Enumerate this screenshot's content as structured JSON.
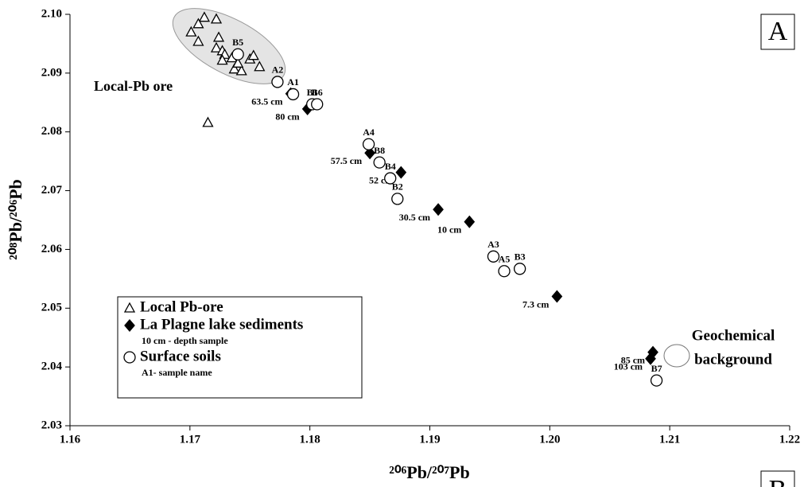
{
  "chart_data": {
    "type": "scatter",
    "xlabel": "²⁰⁶Pb/²⁰⁷Pb",
    "ylabel": "²⁰⁸Pb/²⁰⁶Pb",
    "xlim": [
      1.16,
      1.22
    ],
    "ylim": [
      2.03,
      2.1
    ],
    "xticks": [
      1.16,
      1.17,
      1.18,
      1.19,
      {
        "value": 1.2,
        "label": "1.20"
      },
      1.21,
      1.22
    ],
    "yticks": [
      2.03,
      2.04,
      2.05,
      2.06,
      2.07,
      2.08,
      2.09,
      {
        "value": 2.1,
        "label": "2.10"
      }
    ],
    "annotations": [
      "Local-Pb ore",
      "Geochemical",
      "background"
    ],
    "panel_labels": [
      "A",
      "B"
    ],
    "series": [
      {
        "name": "Local Pb-ore",
        "marker": "triangle",
        "color": "#ffffff",
        "x": [
          1.1712,
          1.1722,
          1.1707,
          1.1701,
          1.1707,
          1.1724,
          1.1722,
          1.1727,
          1.1729,
          1.1735,
          1.1737,
          1.1743,
          1.174,
          1.175,
          1.1753,
          1.1758,
          1.1727,
          1.1715
        ],
        "values": [
          2.0995,
          2.0992,
          2.0984,
          2.097,
          2.0954,
          2.0961,
          2.0943,
          2.0938,
          2.0932,
          2.0926,
          2.0907,
          2.0904,
          2.0917,
          2.0924,
          2.093,
          2.0911,
          2.0922,
          2.0816
        ]
      },
      {
        "name": "La Plagne lake sediments",
        "note": "10 cm - depth sample",
        "marker": "diamond",
        "color": "#000000",
        "x": [
          1.1784,
          1.1798,
          1.185,
          1.1876,
          1.1907,
          1.1933,
          1.2006,
          1.2086,
          1.2084
        ],
        "values": [
          2.0865,
          2.0839,
          2.0764,
          2.0731,
          2.0668,
          2.0647,
          2.052,
          2.0425,
          2.0414
        ],
        "point_labels": [
          "63.5 cm",
          "80 cm",
          "57.5 cm",
          "52 cm",
          "30.5 cm",
          "10 cm",
          "7.3 cm",
          "85 cm",
          "103 cm"
        ]
      },
      {
        "name": "Surface soils",
        "note": "A1- sample name",
        "marker": "circle",
        "color": "#ffffff",
        "x": [
          1.174,
          1.1773,
          1.1786,
          1.1802,
          1.1806,
          1.1849,
          1.1858,
          1.1867,
          1.1873,
          1.1953,
          1.1962,
          1.1975,
          1.2089
        ],
        "values": [
          2.0932,
          2.0885,
          2.0864,
          2.0847,
          2.0847,
          2.0779,
          2.0748,
          2.0721,
          2.0686,
          2.0588,
          2.0563,
          2.0567,
          2.0377
        ],
        "point_labels": [
          "B5",
          "A2",
          "A1",
          "B1",
          "B6",
          "A4",
          "B8",
          "B4",
          "B2",
          "A3",
          "A5",
          "B3",
          "B7"
        ]
      }
    ]
  }
}
